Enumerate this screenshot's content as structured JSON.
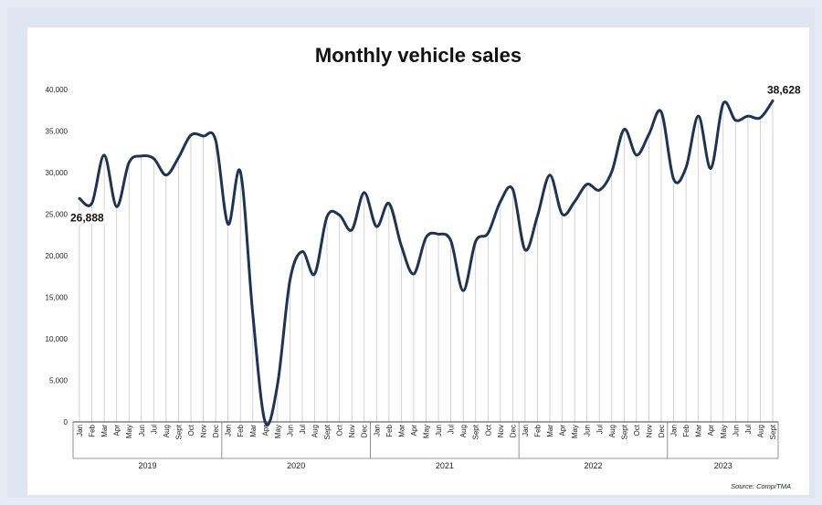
{
  "chart_data": {
    "type": "line",
    "title": "Monthly vehicle sales",
    "source": "Source: Comp/TMA",
    "xlabel": "",
    "ylabel": "",
    "ylim": [
      0,
      40000
    ],
    "y_ticks": [
      "0",
      "5,000",
      "10,000",
      "15,000",
      "20,000",
      "25,000",
      "30,000",
      "35,000",
      "40,000"
    ],
    "grid": "vertical drop lines",
    "line_color": "#1f3352",
    "years": [
      "2019",
      "2020",
      "2021",
      "2022",
      "2023"
    ],
    "months": [
      "Jan",
      "Feb",
      "Mar",
      "Apr",
      "May",
      "Jun",
      "Jul",
      "Aug",
      "Sept",
      "Oct",
      "Nov",
      "Dec",
      "Jan",
      "Feb",
      "Mar",
      "Apr",
      "May",
      "Jun",
      "Jul",
      "Aug",
      "Sept",
      "Oct",
      "Nov",
      "Dec",
      "Jan",
      "Feb",
      "Mar",
      "Apr",
      "May",
      "Jun",
      "Jul",
      "Aug",
      "Sept",
      "Oct",
      "Nov",
      "Dec",
      "Jan",
      "Feb",
      "Mar",
      "Apr",
      "May",
      "Jun",
      "Jul",
      "Aug",
      "Sept",
      "Oct",
      "Nov",
      "Dec",
      "Jan",
      "Feb",
      "Mar",
      "Apr",
      "May",
      "Jun",
      "Jul",
      "Aug",
      "Sept"
    ],
    "series": [
      {
        "values": [
          26888,
          26300,
          32100,
          25900,
          31200,
          32000,
          31700,
          29700,
          31800,
          34500,
          34400,
          33900,
          23800,
          30100,
          13000,
          0,
          4500,
          17000,
          20500,
          17800,
          24700,
          24900,
          23100,
          27600,
          23500,
          26300,
          21200,
          17800,
          22200,
          22600,
          21800,
          15800,
          21700,
          22700,
          26500,
          28000,
          20700,
          24800,
          29700,
          25000,
          26500,
          28600,
          27900,
          30100,
          35200,
          32100,
          34600,
          37300,
          29200,
          30600,
          36800,
          30500,
          38300,
          36300,
          36800,
          36600,
          38628
        ]
      }
    ],
    "annotations": [
      {
        "label": "26,888",
        "index": 0
      },
      {
        "label": "38,628",
        "index": 56
      }
    ]
  }
}
